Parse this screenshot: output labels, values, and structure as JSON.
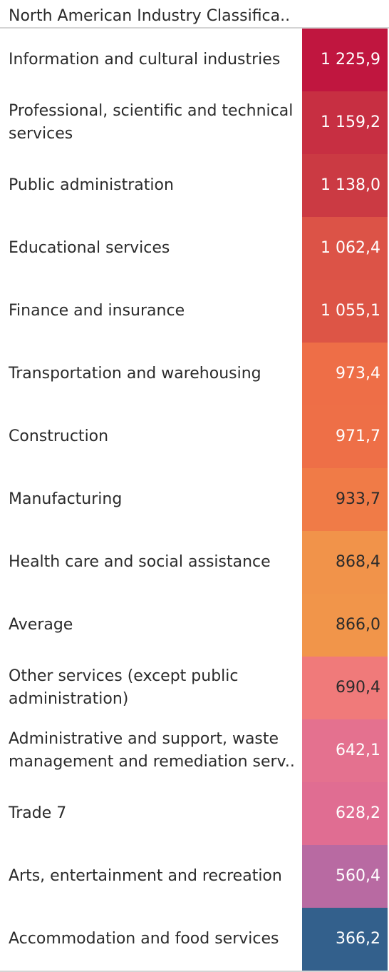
{
  "header": {
    "title": "North American Industry Classifica.."
  },
  "chart_data": {
    "type": "table",
    "column_header": "North American Industry Classifica..",
    "rows": [
      {
        "label": "Information and cultural industries",
        "value": 1225.9,
        "display": "1 225,9",
        "color": "#c0163f",
        "text_color": "#ffffff"
      },
      {
        "label": "Professional, scientific and technical services",
        "value": 1159.2,
        "display": "1 159,2",
        "color": "#c72f42",
        "text_color": "#ffffff"
      },
      {
        "label": "Public administration",
        "value": 1138.0,
        "display": "1 138,0",
        "color": "#cb3a43",
        "text_color": "#ffffff"
      },
      {
        "label": "Educational services",
        "value": 1062.4,
        "display": "1 062,4",
        "color": "#dc5347",
        "text_color": "#ffffff"
      },
      {
        "label": "Finance and insurance",
        "value": 1055.1,
        "display": "1 055,1",
        "color": "#dd5546",
        "text_color": "#ffffff"
      },
      {
        "label": "Transportation and warehousing",
        "value": 973.4,
        "display": "973,4",
        "color": "#ee6e47",
        "text_color": "#ffffff"
      },
      {
        "label": "Construction",
        "value": 971.7,
        "display": "971,7",
        "color": "#ee6f47",
        "text_color": "#ffffff"
      },
      {
        "label": "Manufacturing",
        "value": 933.7,
        "display": "933,7",
        "color": "#f07b47",
        "text_color": "#2b2b2b"
      },
      {
        "label": "Health care and social assistance",
        "value": 868.4,
        "display": "868,4",
        "color": "#f1934a",
        "text_color": "#2b2b2b"
      },
      {
        "label": "Average",
        "value": 866.0,
        "display": "866,0",
        "color": "#f1954a",
        "text_color": "#2b2b2b"
      },
      {
        "label": "Other services (except public administration)",
        "value": 690.4,
        "display": "690,4",
        "color": "#f07a7a",
        "text_color": "#2b2b2b"
      },
      {
        "label": "Administrative and support, waste management and remediation serv..",
        "value": 642.1,
        "display": "642,1",
        "color": "#e4718f",
        "text_color": "#ffffff"
      },
      {
        "label": "Trade 7",
        "value": 628.2,
        "display": "628,2",
        "color": "#e06d92",
        "text_color": "#ffffff"
      },
      {
        "label": "Arts, entertainment and recreation",
        "value": 560.4,
        "display": "560,4",
        "color": "#b86aa2",
        "text_color": "#ffffff"
      },
      {
        "label": "Accommodation and food services",
        "value": 366.2,
        "display": "366,2",
        "color": "#33608c",
        "text_color": "#ffffff"
      }
    ]
  }
}
